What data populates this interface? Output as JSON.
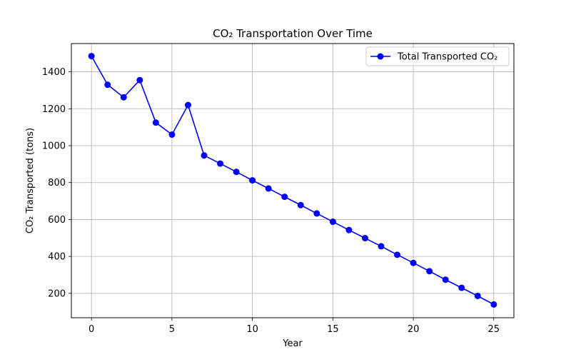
{
  "chart_data": {
    "type": "line",
    "title": "CO₂ Transportation Over Time",
    "xlabel": "Year",
    "ylabel": "CO₂ Transported (tons)",
    "x": [
      0,
      1,
      2,
      3,
      4,
      5,
      6,
      7,
      8,
      9,
      10,
      11,
      12,
      13,
      14,
      15,
      16,
      17,
      18,
      19,
      20,
      21,
      22,
      23,
      24,
      25
    ],
    "series": [
      {
        "name": "Total Transported CO₂",
        "color": "#0000ff",
        "marker": "circle",
        "values": [
          1485,
          1330,
          1262,
          1355,
          1125,
          1060,
          1220,
          947,
          903,
          858,
          812,
          768,
          723,
          678,
          633,
          588,
          543,
          499,
          455,
          409,
          365,
          320,
          274,
          230,
          186,
          140
        ]
      }
    ],
    "xlim": [
      -1.25,
      26.25
    ],
    "ylim": [
      68,
      1553
    ],
    "x_ticks": [
      0,
      5,
      10,
      15,
      20,
      25
    ],
    "y_ticks": [
      200,
      400,
      600,
      800,
      1000,
      1200,
      1400
    ],
    "grid": true,
    "legend_position": "top-right"
  }
}
